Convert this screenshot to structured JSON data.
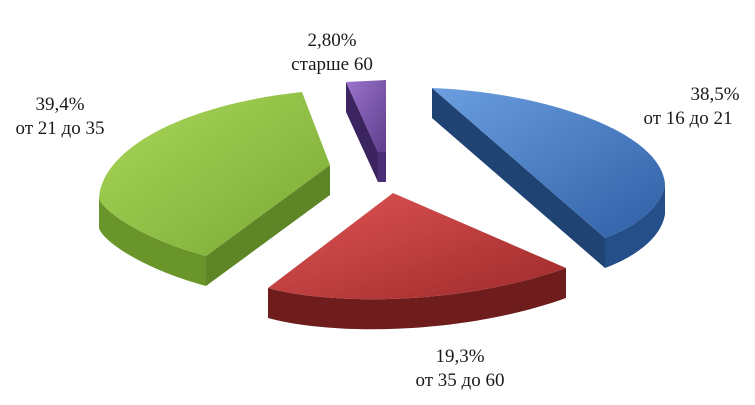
{
  "chart_data": {
    "type": "pie",
    "style": "3d-exploded",
    "slices": [
      {
        "percent_label": "38,5%",
        "category": "от 16 до 21",
        "value": 38.5,
        "color": "#4a7fc7"
      },
      {
        "percent_label": "19,3%",
        "category": "от 35 до 60",
        "value": 19.3,
        "color": "#c23b3b"
      },
      {
        "percent_label": "39,4%",
        "category": "от 21 до 35",
        "value": 39.4,
        "color": "#8fbe45"
      },
      {
        "percent_label": "2,80%",
        "category": "старше 60",
        "value": 2.8,
        "color": "#8056b3"
      }
    ],
    "legend": "none",
    "data_labels": "outside, percent and category on two lines"
  }
}
